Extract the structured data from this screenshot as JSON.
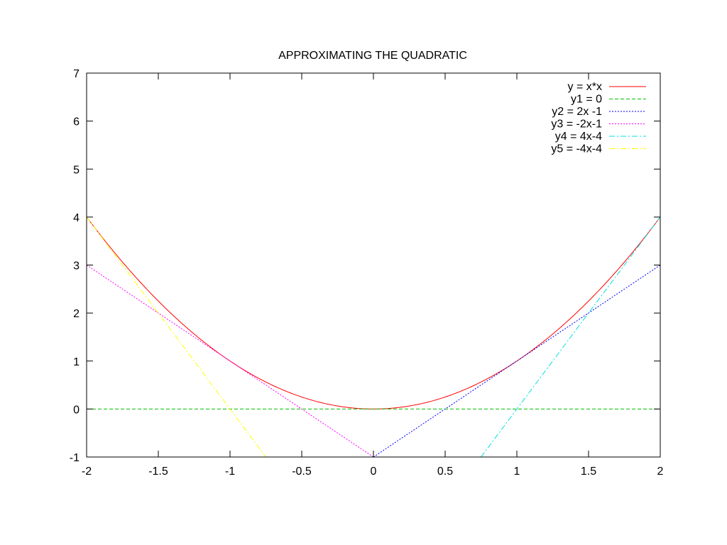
{
  "chart_data": {
    "type": "line",
    "title": "APPROXIMATING THE QUADRATIC",
    "xlabel": "",
    "ylabel": "",
    "xlim": [
      -2,
      2
    ],
    "ylim": [
      -1,
      7
    ],
    "grid": false,
    "legend_position": "top-right",
    "xticks": [
      -2,
      -1.5,
      -1,
      -0.5,
      0,
      0.5,
      1,
      1.5,
      2
    ],
    "xtick_labels": [
      "-2",
      "-1.5",
      "-1",
      "-0.5",
      "0",
      "0.5",
      "1",
      "1.5",
      "2"
    ],
    "yticks": [
      -1,
      0,
      1,
      2,
      3,
      4,
      5,
      6,
      7
    ],
    "ytick_labels": [
      "-1",
      "0",
      "1",
      "2",
      "3",
      "4",
      "5",
      "6",
      "7"
    ],
    "series": [
      {
        "name": "y = x*x",
        "color": "#ff0000",
        "dash": "solid",
        "x": [
          -2,
          -1.75,
          -1.5,
          -1.25,
          -1,
          -0.75,
          -0.5,
          -0.25,
          0,
          0.25,
          0.5,
          0.75,
          1,
          1.25,
          1.5,
          1.75,
          2
        ],
        "y": [
          4,
          3.0625,
          2.25,
          1.5625,
          1,
          0.5625,
          0.25,
          0.0625,
          0,
          0.0625,
          0.25,
          0.5625,
          1,
          1.5625,
          2.25,
          3.0625,
          4
        ]
      },
      {
        "name": "y1 = 0",
        "color": "#00c000",
        "dash": "dashed",
        "x": [
          -2,
          2
        ],
        "y": [
          0,
          0
        ]
      },
      {
        "name": "y2 = 2x -1",
        "color": "#0000ff",
        "dash": "dotted",
        "x": [
          0,
          2
        ],
        "y": [
          -1,
          3
        ]
      },
      {
        "name": "y3 = -2x-1",
        "color": "#ff00ff",
        "dash": "dotted",
        "x": [
          -2,
          0
        ],
        "y": [
          3,
          -1
        ]
      },
      {
        "name": "y4 = 4x-4",
        "color": "#00e0e0",
        "dash": "dashdot",
        "x": [
          0.75,
          2
        ],
        "y": [
          -1,
          4
        ]
      },
      {
        "name": "y5 = -4x-4",
        "color": "#ffff00",
        "dash": "dashdot",
        "x": [
          -2,
          -0.75
        ],
        "y": [
          4,
          -1
        ]
      }
    ]
  }
}
